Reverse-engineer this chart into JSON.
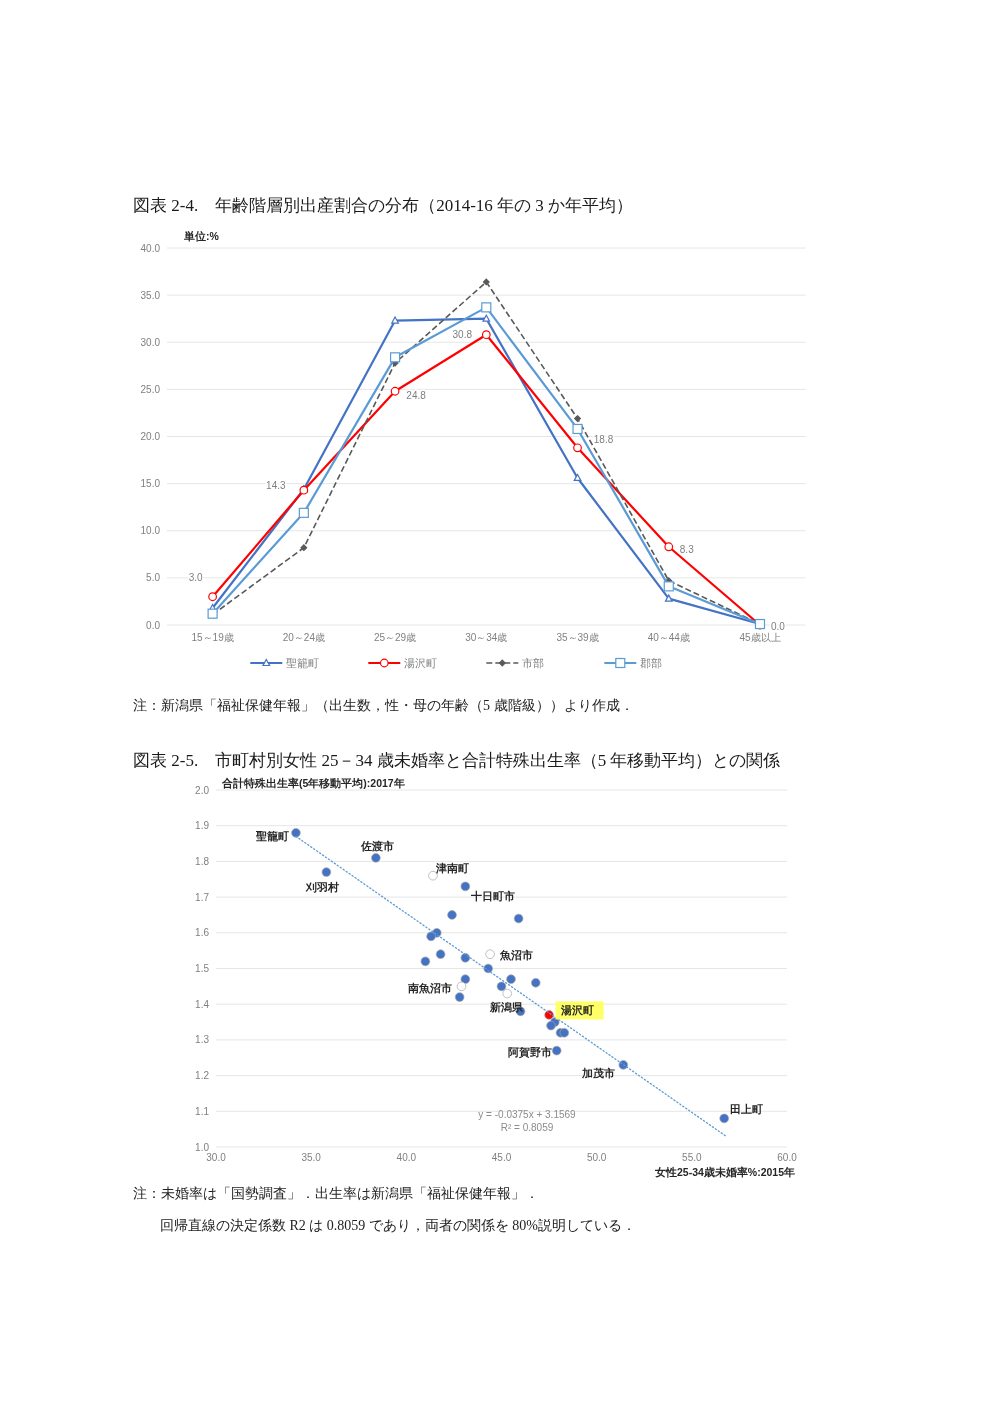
{
  "chart_data": [
    {
      "type": "line",
      "title": "図表 2-4.　年齢階層別出産割合の分布（2014-16 年の 3 か年平均）",
      "ylabel": "単位:%",
      "categories": [
        "15～19歳",
        "20～24歳",
        "25～29歳",
        "30～34歳",
        "35～39歳",
        "40～44歳",
        "45歳以上"
      ],
      "series": [
        {
          "name": "聖籠町",
          "color": "#4472c4",
          "marker": "triangle",
          "values": [
            1.8,
            14.4,
            32.3,
            32.5,
            15.6,
            2.8,
            0.1
          ]
        },
        {
          "name": "湯沢町",
          "color": "#ff0000",
          "marker": "circle",
          "values": [
            3.0,
            14.3,
            24.8,
            30.8,
            18.8,
            8.3,
            0.0
          ],
          "value_labels": [
            "3.0",
            "14.3",
            "24.8",
            "30.8",
            "18.8",
            "8.3",
            "0.0"
          ]
        },
        {
          "name": "市部",
          "color": "#595959",
          "marker": "diamond",
          "line_style": "dashed",
          "values": [
            1.1,
            8.2,
            27.8,
            36.4,
            21.9,
            4.7,
            0.1
          ]
        },
        {
          "name": "郡部",
          "color": "#5b9bd5",
          "marker": "square",
          "values": [
            1.2,
            11.9,
            28.4,
            33.7,
            20.8,
            4.1,
            0.1
          ]
        }
      ],
      "ylim": [
        0,
        40
      ],
      "yticks": [
        {
          "value": 0,
          "label": "0.0"
        },
        {
          "value": 5,
          "label": "5.0"
        },
        {
          "value": 10,
          "label": "10.0"
        },
        {
          "value": 15,
          "label": "15.0"
        },
        {
          "value": 20,
          "label": "20.0"
        },
        {
          "value": 25,
          "label": "25.0"
        },
        {
          "value": 30,
          "label": "30.0"
        },
        {
          "value": 35,
          "label": "35.0"
        },
        {
          "value": 40,
          "label": "40.0"
        }
      ],
      "grid": "y",
      "legend": "bottom",
      "annotations": [
        "注：新潟県「福祉保健年報」（出生数，性・母の年齢（5 歳階級））より作成．"
      ]
    },
    {
      "type": "scatter",
      "title": "図表 2-5.　市町村別女性 25－34 歳未婚率と合計特殊出生率（5 年移動平均）との関係",
      "ylabel": "合計特殊出生率(5年移動平均):2017年",
      "xlabel": "女性25-34歳未婚率%:2015年",
      "marker": "circle",
      "series": [
        {
          "color": "#4472c4",
          "x": [
            34.2,
            35.8,
            38.4,
            43.1,
            42.4,
            45.9,
            41.6,
            41.3,
            41.8,
            43.1,
            41.0,
            44.3,
            43.1,
            45.5,
            46.8,
            45.0,
            42.8,
            46.0,
            47.8,
            47.6,
            48.1,
            48.3,
            47.9,
            51.4,
            56.7
          ],
          "values": [
            1.88,
            1.77,
            1.81,
            1.73,
            1.65,
            1.64,
            1.6,
            1.59,
            1.54,
            1.53,
            1.52,
            1.5,
            1.47,
            1.47,
            1.46,
            1.45,
            1.42,
            1.38,
            1.35,
            1.34,
            1.32,
            1.32,
            1.27,
            1.23,
            1.08
          ]
        },
        {
          "color": "#ffffff",
          "x": [
            41.4,
            44.4,
            42.9,
            45.3
          ],
          "values": [
            1.76,
            1.54,
            1.45,
            1.43
          ]
        },
        {
          "name": "湯沢町",
          "color": "#ff0000",
          "x": [
            47.5
          ],
          "values": [
            1.37
          ]
        },
        {
          "type": "line",
          "color": "#5b9bd5",
          "marker": "none",
          "line_style": "dotted",
          "x": [
            34.2,
            56.8
          ],
          "values": [
            1.87,
            1.03
          ]
        }
      ],
      "xlim": [
        30,
        60
      ],
      "xticks": [
        {
          "value": 30,
          "label": "30.0"
        },
        {
          "value": 35,
          "label": "35.0"
        },
        {
          "value": 40,
          "label": "40.0"
        },
        {
          "value": 45,
          "label": "45.0"
        },
        {
          "value": 50,
          "label": "50.0"
        },
        {
          "value": 55,
          "label": "55.0"
        },
        {
          "value": 60,
          "label": "60.0"
        }
      ],
      "ylim": [
        1,
        2
      ],
      "yticks": [
        {
          "value": 1,
          "label": "1.0"
        },
        {
          "value": 1.1,
          "label": "1.1"
        },
        {
          "value": 1.2,
          "label": "1.2"
        },
        {
          "value": 1.3,
          "label": "1.3"
        },
        {
          "value": 1.4,
          "label": "1.4"
        },
        {
          "value": 1.5,
          "label": "1.5"
        },
        {
          "value": 1.6,
          "label": "1.6"
        },
        {
          "value": 1.7,
          "label": "1.7"
        },
        {
          "value": 1.8,
          "label": "1.8"
        },
        {
          "value": 1.9,
          "label": "1.9"
        },
        {
          "value": 2,
          "label": "2.0"
        }
      ],
      "grid": "y",
      "annotations": [
        {
          "text": "聖籠町",
          "x": 34.2,
          "y": 1.88
        },
        {
          "text": "刈羽村",
          "x": 35.8,
          "y": 1.77
        },
        {
          "text": "佐渡市",
          "x": 38.4,
          "y": 1.81
        },
        {
          "text": "津南町",
          "x": 41.4,
          "y": 1.76
        },
        {
          "text": "十日町市",
          "x": 43.1,
          "y": 1.73
        },
        {
          "text": "魚沼市",
          "x": 44.4,
          "y": 1.54
        },
        {
          "text": "南魚沼市",
          "x": 42.9,
          "y": 1.45
        },
        {
          "text": "新潟県",
          "x": 45.3,
          "y": 1.43
        },
        {
          "text": "阿賀野市",
          "x": 47.9,
          "y": 1.27
        },
        {
          "text": "加茂市",
          "x": 51.4,
          "y": 1.23
        },
        {
          "text": "田上町",
          "x": 56.7,
          "y": 1.08
        },
        "y = -0.0375x + 3.1569",
        "R² = 0.8059",
        "注：未婚率は「国勢調査」．出生率は新潟県「福祉保健年報」．",
        "回帰直線の決定係数 R2 は 0.8059 であり，両者の関係を 80%説明している．"
      ]
    }
  ]
}
